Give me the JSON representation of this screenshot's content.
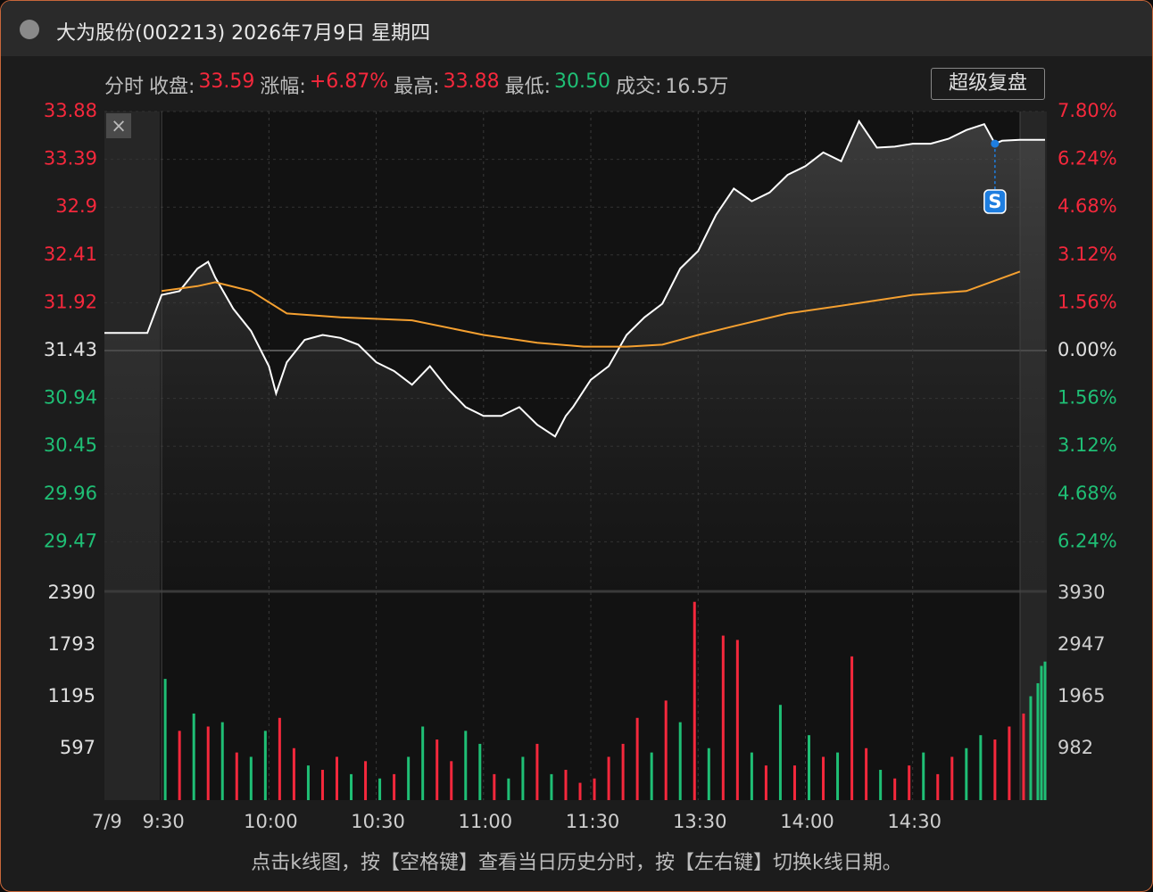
{
  "header": {
    "title": "大为股份(002213) 2026年7月9日 星期四",
    "button": "超级复盘"
  },
  "info": [
    {
      "label": "分时"
    },
    {
      "label": "收盘:",
      "value": "33.59",
      "tone": "#f5283c"
    },
    {
      "label": "涨幅:",
      "value": "+6.87%",
      "tone": "#f5283c"
    },
    {
      "label": "最高:",
      "value": "33.88",
      "tone": "#f5283c"
    },
    {
      "label": "最低:",
      "value": "30.50",
      "tone": "#1fbf75"
    },
    {
      "label": "成交:",
      "value": "16.5万",
      "tone": "#bdbdbd"
    }
  ],
  "footer": "点击k线图，按【空格键】查看当日历史分时，按【左右键】切换k线日期。",
  "chart_data": {
    "type": "line",
    "date_label": "7/9",
    "xlim": [
      -16,
      247
    ],
    "xticks": [
      {
        "value": 0,
        "label": "9:30"
      },
      {
        "value": 30,
        "label": "10:00"
      },
      {
        "value": 60,
        "label": "10:30"
      },
      {
        "value": 90,
        "label": "11:00"
      },
      {
        "value": 120,
        "label": "11:30"
      },
      {
        "value": 150,
        "label": "13:30"
      },
      {
        "value": 180,
        "label": "14:00"
      },
      {
        "value": 210,
        "label": "14:30"
      }
    ],
    "ylim": [
      28.98,
      33.88
    ],
    "yticks": [
      33.88,
      33.39,
      32.9,
      32.41,
      31.92,
      31.43,
      30.94,
      30.45,
      29.96,
      29.47
    ],
    "y2lim": [
      -7.8,
      7.8
    ],
    "y2ticks": [
      {
        "value": 7.8,
        "label": "7.80%"
      },
      {
        "value": 6.24,
        "label": "6.24%"
      },
      {
        "value": 4.68,
        "label": "4.68%"
      },
      {
        "value": 3.12,
        "label": "3.12%"
      },
      {
        "value": 1.56,
        "label": "1.56%"
      },
      {
        "value": 0,
        "label": "0.00%"
      },
      {
        "value": -1.56,
        "label": "1.56%"
      },
      {
        "value": -3.12,
        "label": "3.12%"
      },
      {
        "value": -4.68,
        "label": "4.68%"
      },
      {
        "value": -6.24,
        "label": "6.24%"
      }
    ],
    "up_color": "#f5283c",
    "down_color": "#1fbf75",
    "flat_color": "#e0e0e0",
    "grid": true,
    "series": [
      {
        "name": "价格",
        "color": "#ffffff",
        "x": [
          -16,
          -4,
          0,
          5,
          10,
          13,
          15,
          20,
          25,
          30,
          32,
          35,
          40,
          45,
          50,
          55,
          60,
          65,
          70,
          75,
          80,
          85,
          90,
          95,
          100,
          105,
          110,
          113,
          115,
          120,
          125,
          130,
          135,
          140,
          145,
          150,
          155,
          160,
          165,
          170,
          175,
          180,
          185,
          190,
          195,
          200,
          205,
          210,
          215,
          220,
          225,
          230,
          233,
          235,
          240,
          247
        ],
        "values": [
          31.61,
          31.61,
          32.0,
          32.04,
          32.27,
          32.34,
          32.18,
          31.86,
          31.63,
          31.27,
          30.99,
          31.31,
          31.54,
          31.59,
          31.56,
          31.49,
          31.31,
          31.22,
          31.08,
          31.27,
          31.04,
          30.85,
          30.76,
          30.76,
          30.85,
          30.67,
          30.55,
          30.76,
          30.85,
          31.13,
          31.27,
          31.59,
          31.77,
          31.91,
          32.27,
          32.45,
          32.82,
          33.09,
          32.96,
          33.05,
          33.23,
          33.32,
          33.46,
          33.37,
          33.78,
          33.51,
          33.52,
          33.55,
          33.55,
          33.6,
          33.69,
          33.75,
          33.55,
          33.58,
          33.59,
          33.59
        ]
      },
      {
        "name": "均价",
        "color": "#f5a030",
        "x": [
          0,
          10,
          15,
          25,
          35,
          50,
          70,
          90,
          105,
          118,
          130,
          140,
          150,
          160,
          175,
          190,
          210,
          225,
          240
        ],
        "values": [
          32.04,
          32.09,
          32.13,
          32.04,
          31.81,
          31.77,
          31.74,
          31.59,
          31.51,
          31.47,
          31.47,
          31.49,
          31.59,
          31.68,
          31.81,
          31.89,
          32.0,
          32.04,
          32.24
        ]
      }
    ],
    "signal": {
      "label": "S",
      "x": 233,
      "value": 33.55,
      "color": "#1e7ee0"
    },
    "volume": {
      "ylim": [
        0,
        2390
      ],
      "yticks": [
        2390,
        1793,
        1195,
        597
      ],
      "y2lim": [
        0,
        3930
      ],
      "y2ticks": [
        3930,
        2947,
        1965,
        982
      ],
      "x": [
        1,
        5,
        9,
        13,
        17,
        21,
        25,
        29,
        33,
        37,
        41,
        45,
        49,
        53,
        57,
        61,
        65,
        69,
        73,
        77,
        81,
        85,
        89,
        93,
        97,
        101,
        105,
        109,
        113,
        117,
        121,
        125,
        129,
        133,
        137,
        141,
        145,
        149,
        153,
        157,
        161,
        165,
        169,
        173,
        177,
        181,
        185,
        189,
        193,
        197,
        201,
        205,
        209,
        213,
        217,
        221,
        225,
        229,
        233,
        237,
        241,
        243,
        245,
        246,
        247
      ],
      "values": [
        1400,
        800,
        1000,
        850,
        900,
        550,
        500,
        800,
        950,
        600,
        400,
        350,
        500,
        300,
        450,
        250,
        300,
        500,
        850,
        700,
        450,
        800,
        650,
        300,
        250,
        500,
        650,
        300,
        350,
        200,
        250,
        500,
        650,
        950,
        550,
        1150,
        900,
        2290,
        600,
        1900,
        1850,
        550,
        400,
        1100,
        400,
        750,
        500,
        550,
        1660,
        600,
        350,
        250,
        400,
        550,
        300,
        500,
        600,
        750,
        700,
        850,
        1000,
        1200,
        1350,
        1550,
        1600
      ],
      "colors": [
        "#1fbf75",
        "#f5283c",
        "#1fbf75",
        "#f5283c",
        "#1fbf75",
        "#f5283c",
        "#1fbf75",
        "#1fbf75",
        "#f5283c",
        "#f5283c",
        "#1fbf75",
        "#f5283c",
        "#f5283c",
        "#1fbf75",
        "#f5283c",
        "#1fbf75",
        "#f5283c",
        "#1fbf75",
        "#1fbf75",
        "#f5283c",
        "#f5283c",
        "#1fbf75",
        "#1fbf75",
        "#f5283c",
        "#1fbf75",
        "#1fbf75",
        "#f5283c",
        "#1fbf75",
        "#f5283c",
        "#f5283c",
        "#f5283c",
        "#f5283c",
        "#f5283c",
        "#f5283c",
        "#1fbf75",
        "#f5283c",
        "#1fbf75",
        "#f5283c",
        "#1fbf75",
        "#f5283c",
        "#f5283c",
        "#1fbf75",
        "#f5283c",
        "#1fbf75",
        "#f5283c",
        "#1fbf75",
        "#f5283c",
        "#1fbf75",
        "#f5283c",
        "#f5283c",
        "#1fbf75",
        "#f5283c",
        "#f5283c",
        "#1fbf75",
        "#f5283c",
        "#f5283c",
        "#1fbf75",
        "#1fbf75",
        "#f5283c",
        "#f5283c",
        "#f5283c",
        "#1fbf75",
        "#1fbf75",
        "#1fbf75",
        "#1fbf75"
      ]
    }
  }
}
